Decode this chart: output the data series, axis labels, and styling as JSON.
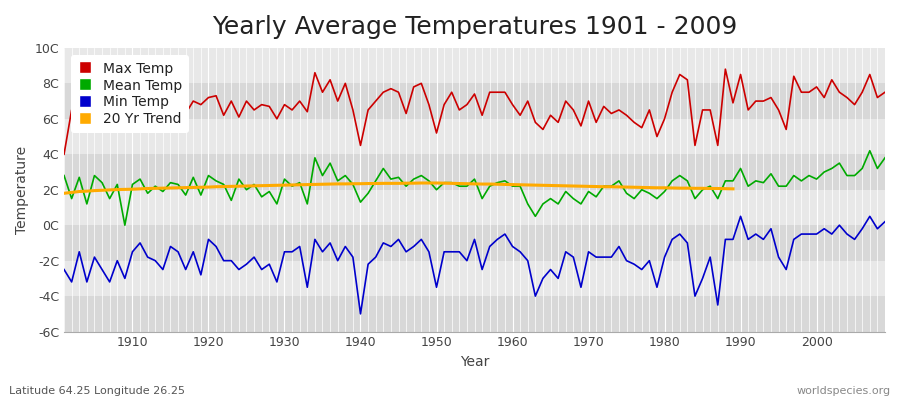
{
  "title": "Yearly Average Temperatures 1901 - 2009",
  "ylabel": "Temperature",
  "xlabel": "Year",
  "subtitle_left": "Latitude 64.25 Longitude 26.25",
  "subtitle_right": "worldspecies.org",
  "years": [
    1901,
    1902,
    1903,
    1904,
    1905,
    1906,
    1907,
    1908,
    1909,
    1910,
    1911,
    1912,
    1913,
    1914,
    1915,
    1916,
    1917,
    1918,
    1919,
    1920,
    1921,
    1922,
    1923,
    1924,
    1925,
    1926,
    1927,
    1928,
    1929,
    1930,
    1931,
    1932,
    1933,
    1934,
    1935,
    1936,
    1937,
    1938,
    1939,
    1940,
    1941,
    1942,
    1943,
    1944,
    1945,
    1946,
    1947,
    1948,
    1949,
    1950,
    1951,
    1952,
    1953,
    1954,
    1955,
    1956,
    1957,
    1958,
    1959,
    1960,
    1961,
    1962,
    1963,
    1964,
    1965,
    1966,
    1967,
    1968,
    1969,
    1970,
    1971,
    1972,
    1973,
    1974,
    1975,
    1976,
    1977,
    1978,
    1979,
    1980,
    1981,
    1982,
    1983,
    1984,
    1985,
    1986,
    1987,
    1988,
    1989,
    1990,
    1991,
    1992,
    1993,
    1994,
    1995,
    1996,
    1997,
    1998,
    1999,
    2000,
    2001,
    2002,
    2003,
    2004,
    2005,
    2006,
    2007,
    2008,
    2009
  ],
  "max_temp": [
    4.0,
    6.5,
    7.0,
    6.8,
    7.2,
    6.5,
    6.7,
    7.0,
    6.0,
    5.9,
    6.9,
    6.4,
    7.1,
    6.6,
    6.3,
    6.7,
    6.3,
    7.0,
    6.8,
    7.2,
    7.3,
    6.2,
    7.0,
    6.1,
    7.0,
    6.5,
    6.8,
    6.7,
    6.0,
    6.8,
    6.5,
    7.0,
    6.4,
    8.6,
    7.5,
    8.2,
    7.0,
    8.0,
    6.5,
    4.5,
    6.5,
    7.0,
    7.5,
    7.7,
    7.5,
    6.3,
    7.8,
    8.0,
    6.8,
    5.2,
    6.8,
    7.5,
    6.5,
    6.8,
    7.4,
    6.2,
    7.5,
    7.5,
    7.5,
    6.8,
    6.2,
    7.0,
    5.8,
    5.4,
    6.2,
    5.8,
    7.0,
    6.5,
    5.6,
    7.0,
    5.8,
    6.7,
    6.3,
    6.5,
    6.2,
    5.8,
    5.5,
    6.5,
    5.0,
    6.0,
    7.5,
    8.5,
    8.2,
    4.5,
    6.5,
    6.5,
    4.5,
    8.8,
    6.9,
    8.5,
    6.5,
    7.0,
    7.0,
    7.2,
    6.5,
    5.4,
    8.4,
    7.5,
    7.5,
    7.8,
    7.2,
    8.2,
    7.5,
    7.2,
    6.8,
    7.5,
    8.5,
    7.2,
    7.5
  ],
  "mean_temp": [
    2.8,
    1.5,
    2.7,
    1.2,
    2.8,
    2.4,
    1.5,
    2.3,
    0.0,
    2.3,
    2.6,
    1.8,
    2.2,
    1.9,
    2.4,
    2.3,
    1.7,
    2.7,
    1.7,
    2.8,
    2.5,
    2.3,
    1.4,
    2.6,
    2.0,
    2.3,
    1.6,
    1.9,
    1.2,
    2.6,
    2.2,
    2.4,
    1.2,
    3.8,
    2.8,
    3.5,
    2.5,
    2.8,
    2.3,
    1.3,
    1.8,
    2.5,
    3.2,
    2.6,
    2.7,
    2.2,
    2.6,
    2.8,
    2.5,
    2.0,
    2.4,
    2.4,
    2.2,
    2.2,
    2.6,
    1.5,
    2.2,
    2.4,
    2.5,
    2.2,
    2.2,
    1.2,
    0.5,
    1.2,
    1.5,
    1.2,
    1.9,
    1.5,
    1.2,
    1.9,
    1.6,
    2.2,
    2.2,
    2.5,
    1.8,
    1.5,
    2.0,
    1.8,
    1.5,
    1.9,
    2.5,
    2.8,
    2.5,
    1.5,
    2.0,
    2.2,
    1.5,
    2.5,
    2.5,
    3.2,
    2.2,
    2.5,
    2.4,
    2.9,
    2.2,
    2.2,
    2.8,
    2.5,
    2.8,
    2.6,
    3.0,
    3.2,
    3.5,
    2.8,
    2.8,
    3.2,
    4.2,
    3.2,
    3.8
  ],
  "min_temp": [
    -2.5,
    -3.2,
    -1.5,
    -3.2,
    -1.8,
    -2.5,
    -3.2,
    -2.0,
    -3.0,
    -1.5,
    -1.0,
    -1.8,
    -2.0,
    -2.5,
    -1.2,
    -1.5,
    -2.5,
    -1.5,
    -2.8,
    -0.8,
    -1.2,
    -2.0,
    -2.0,
    -2.5,
    -2.2,
    -1.8,
    -2.5,
    -2.2,
    -3.2,
    -1.5,
    -1.5,
    -1.2,
    -3.5,
    -0.8,
    -1.5,
    -1.0,
    -2.0,
    -1.2,
    -1.8,
    -5.0,
    -2.2,
    -1.8,
    -1.0,
    -1.2,
    -0.8,
    -1.5,
    -1.2,
    -0.8,
    -1.5,
    -3.5,
    -1.5,
    -1.5,
    -1.5,
    -2.0,
    -0.8,
    -2.5,
    -1.2,
    -0.8,
    -0.5,
    -1.2,
    -1.5,
    -2.0,
    -4.0,
    -3.0,
    -2.5,
    -3.0,
    -1.5,
    -1.8,
    -3.5,
    -1.5,
    -1.8,
    -1.8,
    -1.8,
    -1.2,
    -2.0,
    -2.2,
    -2.5,
    -2.0,
    -3.5,
    -1.8,
    -0.8,
    -0.5,
    -1.0,
    -4.0,
    -3.0,
    -1.8,
    -4.5,
    -0.8,
    -0.8,
    0.5,
    -0.8,
    -0.5,
    -0.8,
    -0.2,
    -1.8,
    -2.5,
    -0.8,
    -0.5,
    -0.5,
    -0.5,
    -0.2,
    -0.5,
    0.0,
    -0.5,
    -0.8,
    -0.2,
    0.5,
    -0.2,
    0.2
  ],
  "trend_years": [
    1901,
    1902,
    1903,
    1904,
    1905,
    1906,
    1907,
    1908,
    1909,
    1910,
    1911,
    1912,
    1913,
    1914,
    1915,
    1916,
    1917,
    1918,
    1919,
    1920,
    1921,
    1922,
    1923,
    1924,
    1925,
    1926,
    1927,
    1928,
    1929,
    1930,
    1931,
    1932,
    1933,
    1934,
    1935,
    1936,
    1937,
    1938,
    1939,
    1940,
    1941,
    1942,
    1943,
    1944,
    1945,
    1946,
    1947,
    1948,
    1949,
    1950,
    1951,
    1952,
    1953,
    1954,
    1955,
    1956,
    1957,
    1958,
    1959,
    1960,
    1961,
    1962,
    1963,
    1964,
    1965,
    1966,
    1967,
    1968,
    1969,
    1970,
    1971,
    1972,
    1973,
    1974,
    1975,
    1976,
    1977,
    1978,
    1979,
    1980,
    1981,
    1982,
    1983,
    1984,
    1985,
    1986,
    1987,
    1988,
    1989
  ],
  "trend_vals": [
    1.8,
    1.85,
    1.9,
    1.92,
    1.95,
    1.97,
    1.99,
    2.01,
    2.02,
    2.03,
    2.05,
    2.07,
    2.08,
    2.09,
    2.1,
    2.11,
    2.12,
    2.13,
    2.14,
    2.15,
    2.17,
    2.18,
    2.19,
    2.2,
    2.21,
    2.22,
    2.23,
    2.24,
    2.25,
    2.26,
    2.27,
    2.28,
    2.29,
    2.3,
    2.31,
    2.32,
    2.33,
    2.33,
    2.34,
    2.34,
    2.35,
    2.35,
    2.36,
    2.36,
    2.36,
    2.37,
    2.37,
    2.38,
    2.38,
    2.38,
    2.37,
    2.36,
    2.35,
    2.34,
    2.33,
    2.32,
    2.32,
    2.31,
    2.3,
    2.29,
    2.28,
    2.27,
    2.26,
    2.25,
    2.24,
    2.23,
    2.22,
    2.21,
    2.2,
    2.19,
    2.18,
    2.17,
    2.17,
    2.16,
    2.15,
    2.14,
    2.13,
    2.12,
    2.11,
    2.11,
    2.1,
    2.09,
    2.09,
    2.08,
    2.08,
    2.07,
    2.07,
    2.06,
    2.05
  ],
  "max_color": "#cc0000",
  "mean_color": "#00aa00",
  "min_color": "#0000cc",
  "trend_color": "#ffaa00",
  "bg_color": "#ffffff",
  "plot_bg_light": "#e8e8e8",
  "plot_bg_dark": "#d8d8d8",
  "grid_color": "#ffffff",
  "ylim": [
    -6,
    10
  ],
  "yticks": [
    -6,
    -4,
    -2,
    0,
    2,
    4,
    6,
    8,
    10
  ],
  "ytick_labels": [
    "-6C",
    "-4C",
    "-2C",
    "0C",
    "2C",
    "4C",
    "6C",
    "8C",
    "10C"
  ],
  "xtick_major": [
    1910,
    1920,
    1930,
    1940,
    1950,
    1960,
    1970,
    1980,
    1990,
    2000
  ],
  "xlim": [
    1901,
    2009
  ],
  "title_fontsize": 18,
  "label_fontsize": 10,
  "tick_fontsize": 9,
  "legend_fontsize": 10,
  "line_width": 1.2
}
